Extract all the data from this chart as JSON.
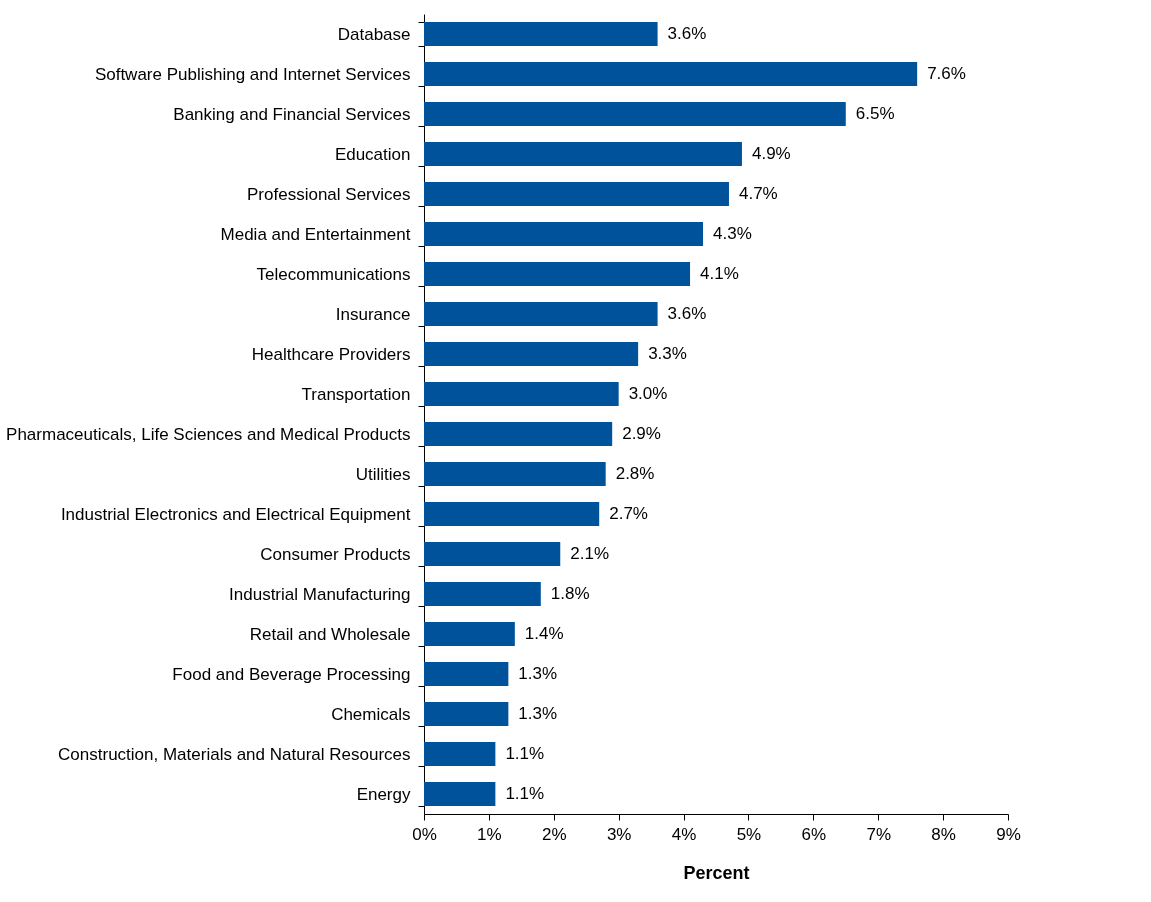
{
  "chart_data": {
    "type": "bar",
    "orientation": "horizontal",
    "xlabel": "Percent",
    "categories": [
      "Database",
      "Software Publishing and Internet Services",
      "Banking and Financial Services",
      "Education",
      "Professional Services",
      "Media and Entertainment",
      "Telecommunications",
      "Insurance",
      "Healthcare Providers",
      "Transportation",
      "Pharmaceuticals, Life Sciences and Medical Products",
      "Utilities",
      "Industrial Electronics and Electrical Equipment",
      "Consumer Products",
      "Industrial Manufacturing",
      "Retail and Wholesale",
      "Food and Beverage Processing",
      "Chemicals",
      "Construction, Materials and Natural Resources",
      "Energy"
    ],
    "values": [
      3.6,
      7.6,
      6.5,
      4.9,
      4.7,
      4.3,
      4.1,
      3.6,
      3.3,
      3.0,
      2.9,
      2.8,
      2.7,
      2.1,
      1.8,
      1.4,
      1.3,
      1.3,
      1.1,
      1.1
    ],
    "value_labels": [
      "3.6%",
      "7.6%",
      "6.5%",
      "4.9%",
      "4.7%",
      "4.3%",
      "4.1%",
      "3.6%",
      "3.3%",
      "3.0%",
      "2.9%",
      "2.8%",
      "2.7%",
      "2.1%",
      "1.8%",
      "1.4%",
      "1.3%",
      "1.3%",
      "1.1%",
      "1.1%"
    ],
    "color": "#00539b",
    "xlim": [
      0,
      9
    ],
    "xticks": [
      {
        "value": 0,
        "label": "0%"
      },
      {
        "value": 1,
        "label": "1%"
      },
      {
        "value": 2,
        "label": "2%"
      },
      {
        "value": 3,
        "label": "3%"
      },
      {
        "value": 4,
        "label": "4%"
      },
      {
        "value": 5,
        "label": "5%"
      },
      {
        "value": 6,
        "label": "6%"
      },
      {
        "value": 7,
        "label": "7%"
      },
      {
        "value": 8,
        "label": "8%"
      },
      {
        "value": 9,
        "label": "9%"
      }
    ],
    "grid": false
  }
}
